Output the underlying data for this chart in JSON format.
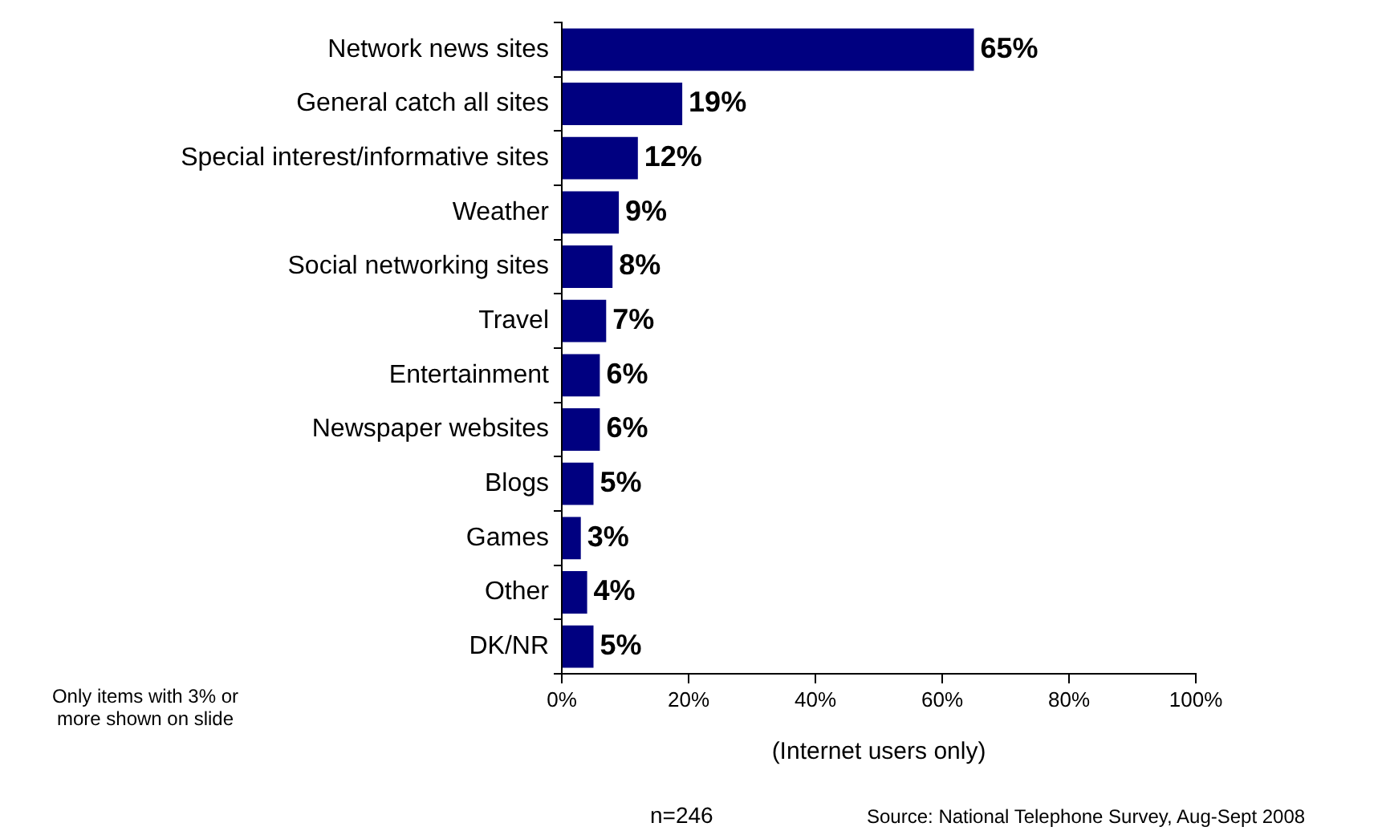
{
  "chart_data": {
    "type": "bar",
    "orientation": "horizontal",
    "xlabel": "(Internet users only)",
    "categories": [
      "Network news sites",
      "General catch all sites",
      "Special interest/informative sites",
      "Weather",
      "Social networking sites",
      "Travel",
      "Entertainment",
      "Newspaper websites",
      "Blogs",
      "Games",
      "Other",
      "DK/NR"
    ],
    "values": [
      65,
      19,
      12,
      9,
      8,
      7,
      6,
      6,
      5,
      3,
      4,
      5
    ],
    "value_labels": [
      "65%",
      "19%",
      "12%",
      "9%",
      "8%",
      "7%",
      "6%",
      "6%",
      "5%",
      "3%",
      "4%",
      "5%"
    ],
    "color": "#000080",
    "xlim": [
      0,
      100
    ],
    "xticks": [
      {
        "value": 0,
        "label": "0%"
      },
      {
        "value": 20,
        "label": "20%"
      },
      {
        "value": 40,
        "label": "40%"
      },
      {
        "value": 60,
        "label": "60%"
      },
      {
        "value": 80,
        "label": "80%"
      },
      {
        "value": 100,
        "label": "100%"
      }
    ],
    "grid": false,
    "legend": false,
    "annotations": [
      "Only items with 3% or more shown on slide",
      "n=246",
      "Source: National Telephone Survey, Aug-Sept 2008"
    ]
  }
}
